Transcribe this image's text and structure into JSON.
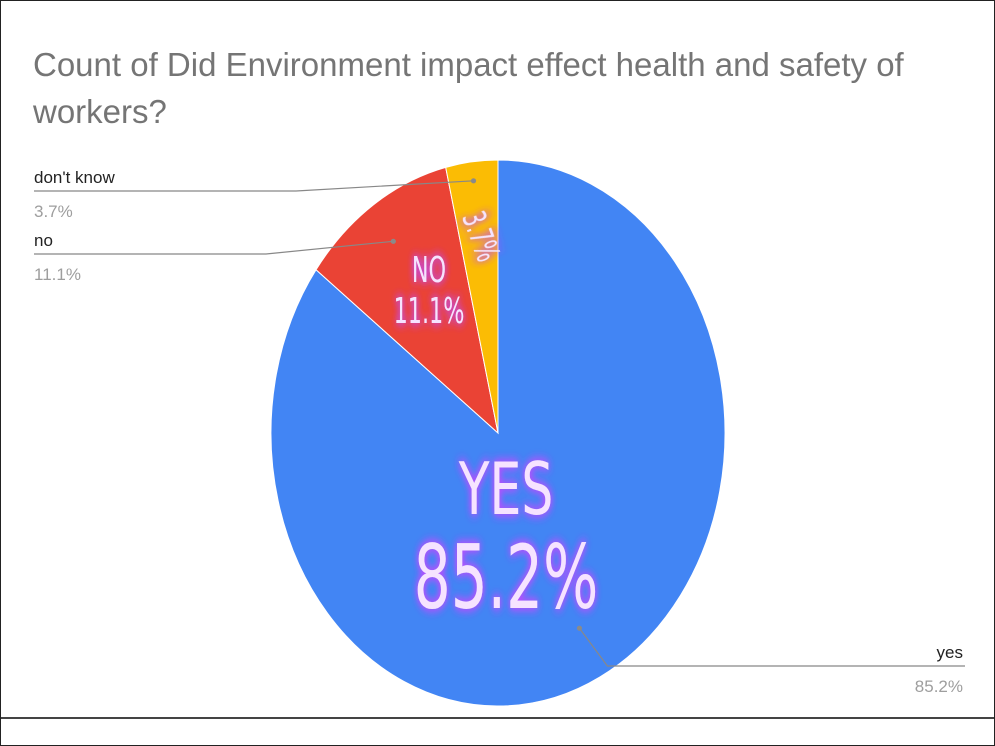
{
  "chart_data": {
    "type": "pie",
    "title": "Count of Did Environment impact effect health and safety of workers?",
    "slices": [
      {
        "label": "yes",
        "value": 85.2,
        "percent_label": "85.2%",
        "color": "#4285f4",
        "overlay_lines": [
          "YES",
          "85.2%"
        ]
      },
      {
        "label": "no",
        "value": 11.1,
        "percent_label": "11.1%",
        "color": "#ea4335",
        "overlay_lines": [
          "NO",
          "11.1%"
        ]
      },
      {
        "label": "don't know",
        "value": 3.7,
        "percent_label": "3.7%",
        "color": "#fbbc04",
        "overlay_lines": [
          "3.7%"
        ]
      }
    ],
    "legend": "callout labels beside slices",
    "overlay_text_color": "#f6e3ff",
    "overlay_glow_color": "#c04bff"
  }
}
